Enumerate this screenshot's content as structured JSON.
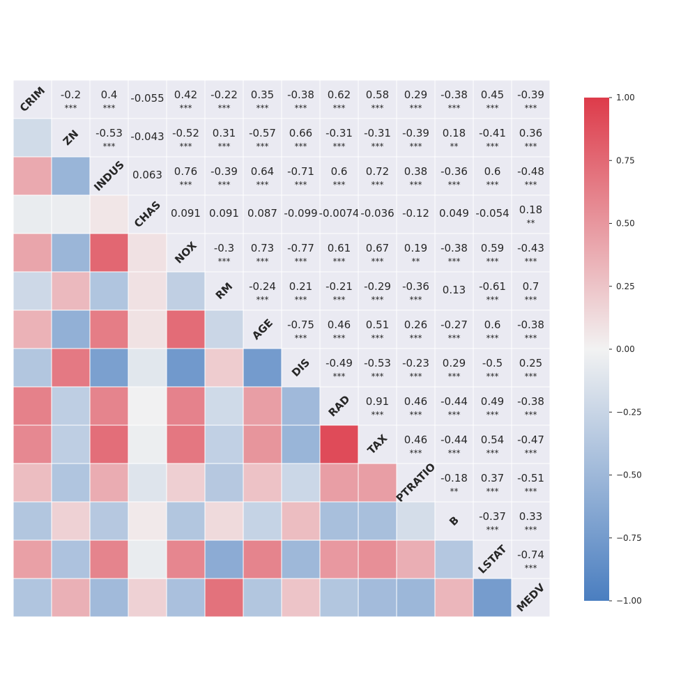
{
  "chart_data": {
    "type": "heatmap",
    "variables": [
      "CRIM",
      "ZN",
      "INDUS",
      "CHAS",
      "NOX",
      "RM",
      "AGE",
      "DIS",
      "RAD",
      "TAX",
      "PTRATIO",
      "B",
      "LSTAT",
      "MEDV"
    ],
    "upper_values": [
      [
        null,
        -0.2,
        0.4,
        -0.055,
        0.42,
        -0.22,
        0.35,
        -0.38,
        0.62,
        0.58,
        0.29,
        -0.38,
        0.45,
        -0.39
      ],
      [
        null,
        null,
        -0.53,
        -0.043,
        -0.52,
        0.31,
        -0.57,
        0.66,
        -0.31,
        -0.31,
        -0.39,
        0.18,
        -0.41,
        0.36
      ],
      [
        null,
        null,
        null,
        0.063,
        0.76,
        -0.39,
        0.64,
        -0.71,
        0.6,
        0.72,
        0.38,
        -0.36,
        0.6,
        -0.48
      ],
      [
        null,
        null,
        null,
        null,
        0.091,
        0.091,
        0.087,
        -0.099,
        -0.0074,
        -0.036,
        -0.12,
        0.049,
        -0.054,
        0.18
      ],
      [
        null,
        null,
        null,
        null,
        null,
        -0.3,
        0.73,
        -0.77,
        0.61,
        0.67,
        0.19,
        -0.38,
        0.59,
        -0.43
      ],
      [
        null,
        null,
        null,
        null,
        null,
        null,
        -0.24,
        0.21,
        -0.21,
        -0.29,
        -0.36,
        0.13,
        -0.61,
        0.7
      ],
      [
        null,
        null,
        null,
        null,
        null,
        null,
        null,
        -0.75,
        0.46,
        0.51,
        0.26,
        -0.27,
        0.6,
        -0.38
      ],
      [
        null,
        null,
        null,
        null,
        null,
        null,
        null,
        null,
        -0.49,
        -0.53,
        -0.23,
        0.29,
        -0.5,
        0.25
      ],
      [
        null,
        null,
        null,
        null,
        null,
        null,
        null,
        null,
        null,
        0.91,
        0.46,
        -0.44,
        0.49,
        -0.38
      ],
      [
        null,
        null,
        null,
        null,
        null,
        null,
        null,
        null,
        null,
        null,
        0.46,
        -0.44,
        0.54,
        -0.47
      ],
      [
        null,
        null,
        null,
        null,
        null,
        null,
        null,
        null,
        null,
        null,
        null,
        -0.18,
        0.37,
        -0.51
      ],
      [
        null,
        null,
        null,
        null,
        null,
        null,
        null,
        null,
        null,
        null,
        null,
        null,
        -0.37,
        0.33
      ],
      [
        null,
        null,
        null,
        null,
        null,
        null,
        null,
        null,
        null,
        null,
        null,
        null,
        null,
        -0.74
      ],
      [
        null,
        null,
        null,
        null,
        null,
        null,
        null,
        null,
        null,
        null,
        null,
        null,
        null,
        null
      ]
    ],
    "upper_labels": [
      [
        null,
        "-0.2",
        "0.4",
        "-0.055",
        "0.42",
        "-0.22",
        "0.35",
        "-0.38",
        "0.62",
        "0.58",
        "0.29",
        "-0.38",
        "0.45",
        "-0.39"
      ],
      [
        null,
        null,
        "-0.53",
        "-0.043",
        "-0.52",
        "0.31",
        "-0.57",
        "0.66",
        "-0.31",
        "-0.31",
        "-0.39",
        "0.18",
        "-0.41",
        "0.36"
      ],
      [
        null,
        null,
        null,
        "0.063",
        "0.76",
        "-0.39",
        "0.64",
        "-0.71",
        "0.6",
        "0.72",
        "0.38",
        "-0.36",
        "0.6",
        "-0.48"
      ],
      [
        null,
        null,
        null,
        null,
        "0.091",
        "0.091",
        "0.087",
        "-0.099",
        "-0.0074",
        "-0.036",
        "-0.12",
        "0.049",
        "-0.054",
        "0.18"
      ],
      [
        null,
        null,
        null,
        null,
        null,
        "-0.3",
        "0.73",
        "-0.77",
        "0.61",
        "0.67",
        "0.19",
        "-0.38",
        "0.59",
        "-0.43"
      ],
      [
        null,
        null,
        null,
        null,
        null,
        null,
        "-0.24",
        "0.21",
        "-0.21",
        "-0.29",
        "-0.36",
        "0.13",
        "-0.61",
        "0.7"
      ],
      [
        null,
        null,
        null,
        null,
        null,
        null,
        null,
        "-0.75",
        "0.46",
        "0.51",
        "0.26",
        "-0.27",
        "0.6",
        "-0.38"
      ],
      [
        null,
        null,
        null,
        null,
        null,
        null,
        null,
        null,
        "-0.49",
        "-0.53",
        "-0.23",
        "0.29",
        "-0.5",
        "0.25"
      ],
      [
        null,
        null,
        null,
        null,
        null,
        null,
        null,
        null,
        null,
        "0.91",
        "0.46",
        "-0.44",
        "0.49",
        "-0.38"
      ],
      [
        null,
        null,
        null,
        null,
        null,
        null,
        null,
        null,
        null,
        null,
        "0.46",
        "-0.44",
        "0.54",
        "-0.47"
      ],
      [
        null,
        null,
        null,
        null,
        null,
        null,
        null,
        null,
        null,
        null,
        null,
        "-0.18",
        "0.37",
        "-0.51"
      ],
      [
        null,
        null,
        null,
        null,
        null,
        null,
        null,
        null,
        null,
        null,
        null,
        null,
        "-0.37",
        "0.33"
      ],
      [
        null,
        null,
        null,
        null,
        null,
        null,
        null,
        null,
        null,
        null,
        null,
        null,
        null,
        "-0.74"
      ],
      [
        null,
        null,
        null,
        null,
        null,
        null,
        null,
        null,
        null,
        null,
        null,
        null,
        null,
        null
      ]
    ],
    "significance": [
      [
        null,
        "***",
        "***",
        "",
        "***",
        "***",
        "***",
        "***",
        "***",
        "***",
        "***",
        "***",
        "***",
        "***"
      ],
      [
        null,
        null,
        "***",
        "",
        "***",
        "***",
        "***",
        "***",
        "***",
        "***",
        "***",
        "**",
        "***",
        "***"
      ],
      [
        null,
        null,
        null,
        "",
        "***",
        "***",
        "***",
        "***",
        "***",
        "***",
        "***",
        "***",
        "***",
        "***"
      ],
      [
        null,
        null,
        null,
        null,
        "",
        "",
        "",
        "",
        "",
        "",
        "",
        "",
        "",
        "**"
      ],
      [
        null,
        null,
        null,
        null,
        null,
        "***",
        "***",
        "***",
        "***",
        "***",
        "**",
        "***",
        "***",
        "***"
      ],
      [
        null,
        null,
        null,
        null,
        null,
        null,
        "***",
        "***",
        "***",
        "***",
        "***",
        "",
        "***",
        "***"
      ],
      [
        null,
        null,
        null,
        null,
        null,
        null,
        null,
        "***",
        "***",
        "***",
        "***",
        "***",
        "***",
        "***"
      ],
      [
        null,
        null,
        null,
        null,
        null,
        null,
        null,
        null,
        "***",
        "***",
        "***",
        "***",
        "***",
        "***"
      ],
      [
        null,
        null,
        null,
        null,
        null,
        null,
        null,
        null,
        null,
        "***",
        "***",
        "***",
        "***",
        "***"
      ],
      [
        null,
        null,
        null,
        null,
        null,
        null,
        null,
        null,
        null,
        null,
        "***",
        "***",
        "***",
        "***"
      ],
      [
        null,
        null,
        null,
        null,
        null,
        null,
        null,
        null,
        null,
        null,
        null,
        "**",
        "***",
        "***"
      ],
      [
        null,
        null,
        null,
        null,
        null,
        null,
        null,
        null,
        null,
        null,
        null,
        null,
        "***",
        "***"
      ],
      [
        null,
        null,
        null,
        null,
        null,
        null,
        null,
        null,
        null,
        null,
        null,
        null,
        null,
        "***"
      ],
      [
        null,
        null,
        null,
        null,
        null,
        null,
        null,
        null,
        null,
        null,
        null,
        null,
        null,
        null
      ]
    ],
    "vmin": -1.0,
    "vmax": 1.0,
    "colorbar_ticks": [
      1.0,
      0.75,
      0.5,
      0.25,
      0.0,
      -0.25,
      -0.5,
      -0.75,
      -1.0
    ],
    "colorbar_tick_labels": [
      "1.00",
      "0.75",
      "0.50",
      "0.25",
      "0.00",
      "−0.25",
      "−0.50",
      "−0.75",
      "−1.00"
    ],
    "colormap": {
      "negative": "#4a7ec0",
      "center": "#f2f2f2",
      "positive": "#dd3b4a"
    },
    "upper_cell_color": "#eaeaf2",
    "lower_triangle": "color-only",
    "legend": "colorbar right"
  }
}
